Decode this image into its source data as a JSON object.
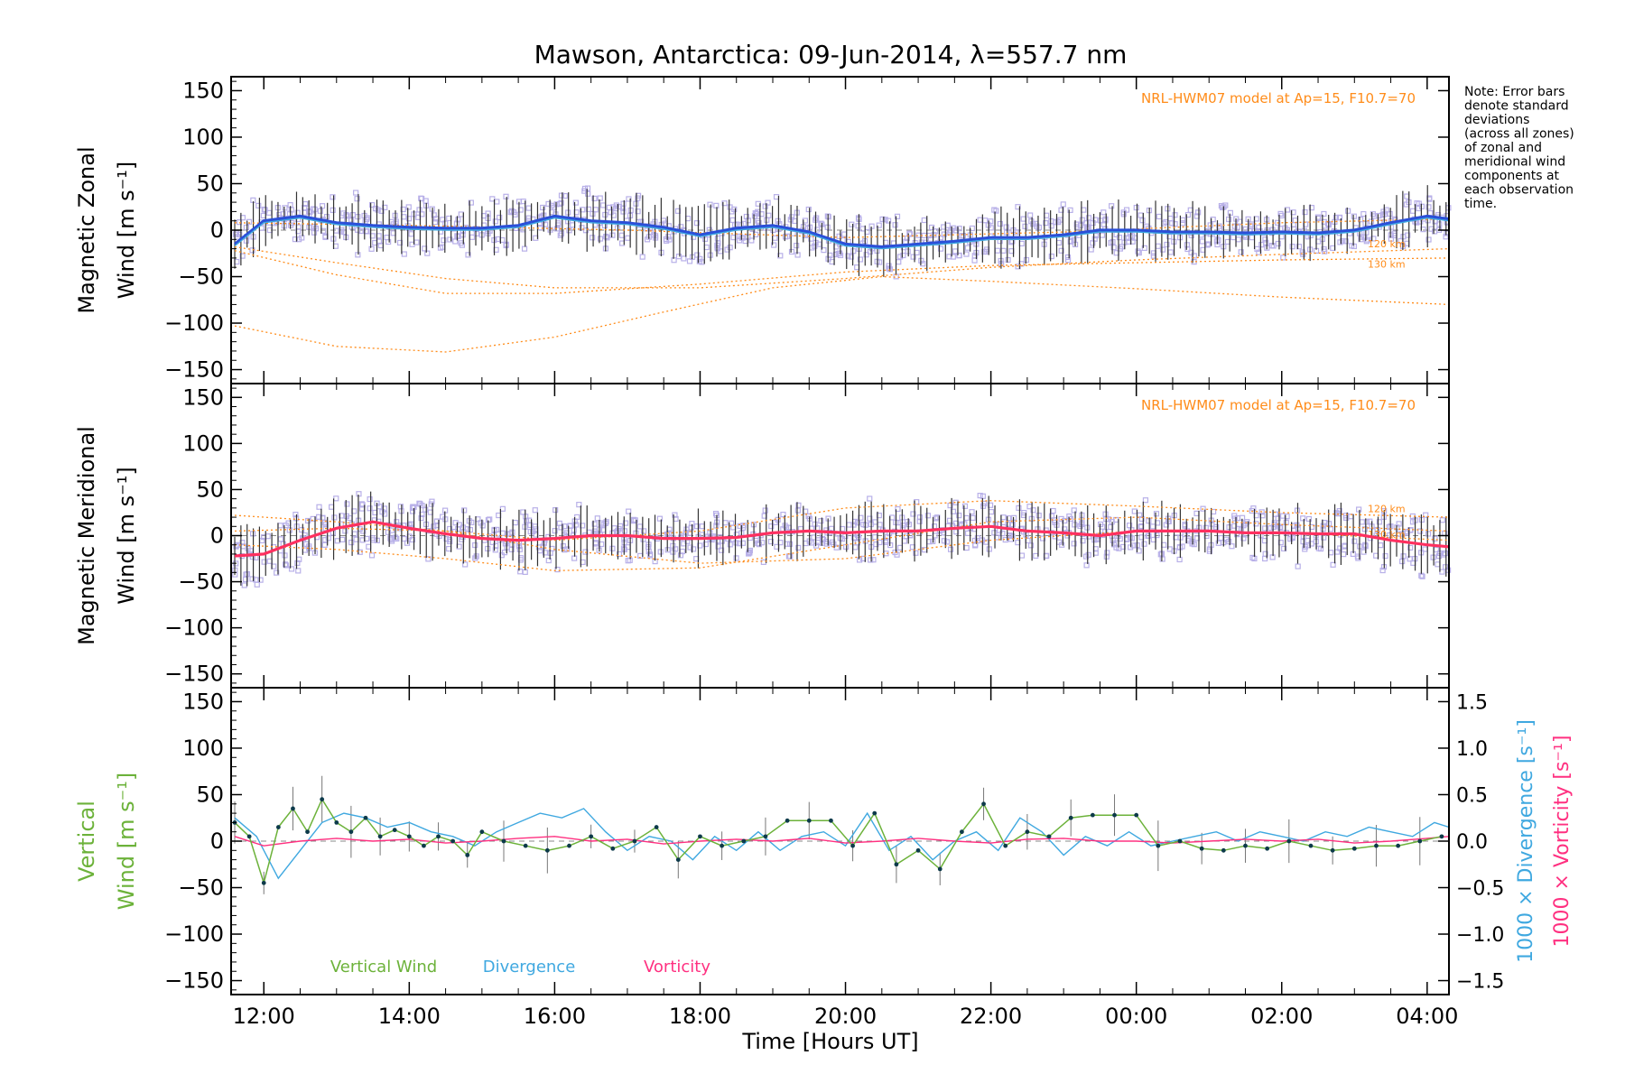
{
  "title": "Mawson, Antarctica: 09-Jun-2014, λ=557.7 nm",
  "xlabel": "Time [Hours UT]",
  "note_lines": [
    "Note: Error bars",
    "denote standard",
    "deviations",
    "(across all zones)",
    "of zonal and",
    "meridional wind",
    "components at",
    "each observation",
    "time."
  ],
  "colors": {
    "zonal_mean": "#2b4fd8",
    "zonal_fine": "#3fa8e0",
    "meridional_mean": "#ff3060",
    "scatter": "#b8b0e8",
    "model": "#ff8c1a",
    "vertical": "#6cb23a",
    "divergence": "#3fa8e0",
    "vorticity": "#ff3080",
    "dots": "#0d3a4a"
  },
  "chart_data": [
    {
      "type": "line",
      "panel": "zonal",
      "ylabel": [
        "Magnetic Zonal",
        "Wind [m s⁻¹]"
      ],
      "ylim": [
        -165,
        165
      ],
      "yticks": [
        -150,
        -100,
        -50,
        0,
        50,
        100,
        150
      ],
      "xlim": [
        11.55,
        28.3
      ],
      "xticks": [
        12,
        14,
        16,
        18,
        20,
        22,
        24,
        26,
        28
      ],
      "xtick_labels": [
        "12:00",
        "14:00",
        "16:00",
        "18:00",
        "20:00",
        "22:00",
        "00:00",
        "02:00",
        "04:00"
      ],
      "model_label": "NRL-HWM07 model at Ap=15, F10.7=70",
      "model_curves": [
        {
          "label": "120 km",
          "x": [
            11.6,
            13,
            14.5,
            16,
            18,
            20,
            22,
            24,
            26,
            28.3
          ],
          "y": [
            -18,
            -35,
            -52,
            -62,
            -62,
            -52,
            -40,
            -32,
            -26,
            -20
          ]
        },
        {
          "label": "130 km",
          "x": [
            11.6,
            13,
            14.5,
            16,
            18,
            20,
            22,
            24,
            26,
            28.3
          ],
          "y": [
            -22,
            -48,
            -68,
            -68,
            -58,
            -45,
            -38,
            -35,
            -32,
            -30
          ]
        },
        {
          "label": "",
          "x": [
            11.6,
            13,
            14.5,
            16,
            17.5,
            19,
            20.5,
            22,
            24,
            26,
            28.3
          ],
          "y": [
            -103,
            -125,
            -131,
            -115,
            -88,
            -62,
            -50,
            -55,
            -63,
            -72,
            -80
          ]
        },
        {
          "label": "",
          "x": [
            11.6,
            14,
            17,
            20,
            23,
            26,
            28.3
          ],
          "y": [
            8,
            5,
            0,
            -8,
            -2,
            8,
            12
          ]
        }
      ],
      "mean_x": [
        11.6,
        12,
        12.5,
        13,
        13.5,
        14,
        14.5,
        15,
        15.5,
        16,
        16.5,
        17,
        17.5,
        18,
        18.5,
        19,
        19.5,
        20,
        20.5,
        21,
        21.5,
        22,
        22.5,
        23,
        23.5,
        24,
        24.5,
        25,
        25.5,
        26,
        26.5,
        27,
        27.5,
        28,
        28.3
      ],
      "mean_y": [
        -15,
        10,
        15,
        8,
        5,
        3,
        2,
        2,
        5,
        15,
        10,
        8,
        3,
        -5,
        2,
        5,
        -2,
        -15,
        -18,
        -15,
        -12,
        -8,
        -8,
        -5,
        0,
        0,
        -2,
        -2,
        -3,
        -2,
        -3,
        0,
        8,
        15,
        12
      ]
    },
    {
      "type": "line",
      "panel": "meridional",
      "ylabel": [
        "Magnetic Meridional",
        "Wind [m s⁻¹]"
      ],
      "ylim": [
        -165,
        165
      ],
      "yticks": [
        -150,
        -100,
        -50,
        0,
        50,
        100,
        150
      ],
      "xlim": [
        11.55,
        28.3
      ],
      "xticks": [
        12,
        14,
        16,
        18,
        20,
        22,
        24,
        26,
        28
      ],
      "model_label": "NRL-HWM07 model at Ap=15, F10.7=70",
      "model_curves": [
        {
          "label": "120 km",
          "x": [
            11.6,
            13,
            14.5,
            16,
            18,
            20,
            22,
            24,
            26,
            28.3
          ],
          "y": [
            22,
            15,
            5,
            -5,
            5,
            30,
            38,
            32,
            25,
            20
          ]
        },
        {
          "label": "130 km",
          "x": [
            11.6,
            13,
            14.5,
            16,
            18,
            20,
            22,
            24,
            26,
            28.3
          ],
          "y": [
            -10,
            -15,
            -25,
            -38,
            -35,
            -10,
            15,
            20,
            12,
            5
          ]
        },
        {
          "label": "",
          "x": [
            11.6,
            13,
            14.5,
            16,
            18,
            20,
            22,
            24,
            26,
            28.3
          ],
          "y": [
            5,
            8,
            5,
            -15,
            -30,
            -25,
            -5,
            5,
            3,
            -5
          ]
        }
      ],
      "mean_x": [
        11.6,
        12,
        12.5,
        13,
        13.5,
        14,
        14.5,
        15,
        15.5,
        16,
        16.5,
        17,
        17.5,
        18,
        18.5,
        19,
        19.5,
        20,
        20.5,
        21,
        21.5,
        22,
        22.5,
        23,
        23.5,
        24,
        24.5,
        25,
        25.5,
        26,
        26.5,
        27,
        27.5,
        28,
        28.3
      ],
      "mean_y": [
        -22,
        -20,
        -5,
        8,
        15,
        8,
        2,
        -3,
        -5,
        -3,
        0,
        0,
        -3,
        -3,
        -2,
        3,
        5,
        3,
        5,
        5,
        8,
        10,
        5,
        3,
        0,
        5,
        5,
        5,
        3,
        3,
        2,
        2,
        -5,
        -10,
        -12
      ]
    },
    {
      "type": "line",
      "panel": "vertical",
      "ylabel": [
        "Vertical",
        "Wind [m s⁻¹]"
      ],
      "ylim": [
        -165,
        165
      ],
      "yticks": [
        -150,
        -100,
        -50,
        0,
        50,
        100,
        150
      ],
      "xlim": [
        11.55,
        28.3
      ],
      "xticks": [
        12,
        14,
        16,
        18,
        20,
        22,
        24,
        26,
        28
      ],
      "y2label_divergence": "1000 × Divergence [s⁻¹]",
      "y2label_vorticity": "1000 × Vorticity [s⁻¹]",
      "y2lim": [
        -1.65,
        1.65
      ],
      "y2ticks": [
        -1.5,
        -1.0,
        -0.5,
        0.0,
        0.5,
        1.0,
        1.5
      ],
      "y2tick_labels": [
        "−1.5",
        "−1.0",
        "−0.5",
        "0.0",
        "0.5",
        "1.0",
        "1.5"
      ],
      "legend": [
        "Vertical Wind",
        "Divergence",
        "Vorticity"
      ],
      "series": [
        {
          "name": "Vertical Wind",
          "x": [
            11.6,
            11.8,
            12.0,
            12.2,
            12.4,
            12.6,
            12.8,
            13.0,
            13.2,
            13.4,
            13.6,
            13.8,
            14.0,
            14.2,
            14.4,
            14.6,
            14.8,
            15.0,
            15.3,
            15.6,
            15.9,
            16.2,
            16.5,
            16.8,
            17.1,
            17.4,
            17.7,
            18.0,
            18.3,
            18.6,
            18.9,
            19.2,
            19.5,
            19.8,
            20.1,
            20.4,
            20.7,
            21.0,
            21.3,
            21.6,
            21.9,
            22.2,
            22.5,
            22.8,
            23.1,
            23.4,
            23.7,
            24.0,
            24.3,
            24.6,
            24.9,
            25.2,
            25.5,
            25.8,
            26.1,
            26.4,
            26.7,
            27.0,
            27.3,
            27.6,
            27.9,
            28.2
          ],
          "y": [
            20,
            5,
            -45,
            15,
            35,
            10,
            45,
            20,
            10,
            25,
            5,
            12,
            5,
            -5,
            5,
            0,
            -15,
            10,
            0,
            -5,
            -10,
            -5,
            5,
            -8,
            0,
            15,
            -20,
            5,
            -5,
            0,
            5,
            22,
            22,
            22,
            -5,
            30,
            -25,
            -10,
            -30,
            10,
            40,
            -5,
            10,
            5,
            25,
            28,
            28,
            28,
            -5,
            0,
            -8,
            -10,
            -5,
            -8,
            0,
            -5,
            -10,
            -8,
            -5,
            -5,
            0,
            5
          ]
        },
        {
          "name": "Divergence",
          "x": [
            11.6,
            11.9,
            12.2,
            12.5,
            12.8,
            13.1,
            13.4,
            13.7,
            14.0,
            14.3,
            14.6,
            14.9,
            15.2,
            15.5,
            15.8,
            16.1,
            16.4,
            16.7,
            17.0,
            17.3,
            17.6,
            17.9,
            18.2,
            18.5,
            18.8,
            19.1,
            19.4,
            19.7,
            20.0,
            20.3,
            20.6,
            20.9,
            21.2,
            21.5,
            21.8,
            22.1,
            22.4,
            22.7,
            23.0,
            23.3,
            23.6,
            23.9,
            24.2,
            24.5,
            24.8,
            25.1,
            25.4,
            25.7,
            26.0,
            26.3,
            26.6,
            26.9,
            27.2,
            27.5,
            27.8,
            28.1,
            28.3
          ],
          "y": [
            0.25,
            0.05,
            -0.4,
            -0.1,
            0.2,
            0.3,
            0.25,
            0.15,
            0.2,
            0.1,
            0.05,
            -0.05,
            0.1,
            0.2,
            0.3,
            0.25,
            0.35,
            0.1,
            -0.1,
            0.05,
            0.0,
            -0.2,
            0.05,
            -0.1,
            0.1,
            -0.1,
            0.05,
            0.1,
            -0.05,
            0.3,
            -0.1,
            0.05,
            -0.2,
            0.0,
            0.1,
            -0.1,
            0.25,
            0.1,
            -0.15,
            0.05,
            -0.05,
            0.1,
            -0.05,
            0.0,
            0.05,
            0.1,
            0.0,
            0.1,
            0.05,
            0.0,
            0.1,
            0.05,
            0.15,
            0.1,
            0.05,
            0.2,
            0.15
          ]
        },
        {
          "name": "Vorticity",
          "x": [
            11.6,
            12.0,
            12.5,
            13.0,
            13.5,
            14.0,
            14.5,
            15.0,
            15.5,
            16.0,
            16.5,
            17.0,
            17.5,
            18.0,
            18.5,
            19.0,
            19.5,
            20.0,
            20.5,
            21.0,
            21.5,
            22.0,
            22.5,
            23.0,
            23.5,
            24.0,
            24.5,
            25.0,
            25.5,
            26.0,
            26.5,
            27.0,
            27.5,
            28.0,
            28.3
          ],
          "y": [
            0.05,
            -0.05,
            0.0,
            0.03,
            0.0,
            0.02,
            -0.02,
            0.0,
            0.03,
            0.05,
            0.0,
            0.02,
            -0.03,
            0.0,
            0.02,
            0.0,
            0.03,
            -0.02,
            0.0,
            0.03,
            0.0,
            -0.02,
            0.02,
            0.03,
            0.0,
            0.0,
            -0.02,
            0.0,
            0.02,
            0.0,
            0.02,
            -0.02,
            0.0,
            0.03,
            0.05
          ]
        }
      ]
    }
  ]
}
